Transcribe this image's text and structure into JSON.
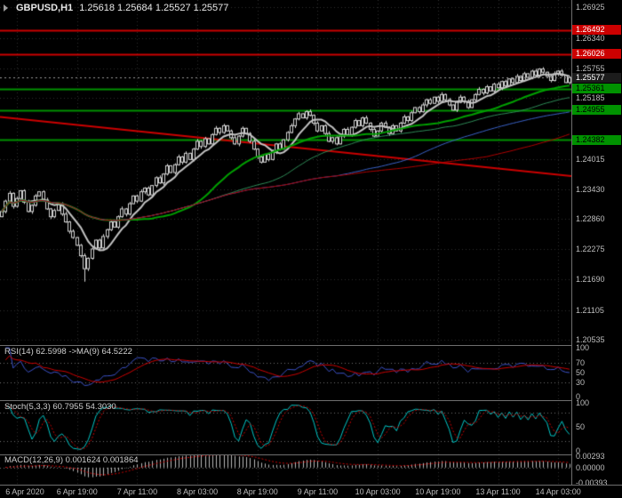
{
  "title": {
    "symbol": "GBPUSD,H1",
    "ohlc": "1.25618 1.25684 1.25527 1.25577"
  },
  "colors": {
    "background": "#000000",
    "grid": "#2f2f2f",
    "frame": "#6e6e6e",
    "candle_outline": "#d4d4d4",
    "resistance_red": "#cc0000",
    "support_green": "#009200",
    "current_price_bg": "#1c1c1c"
  },
  "chart_data": {
    "type": "candlestick",
    "symbol": "GBPUSD",
    "timeframe": "H1",
    "ohlc_display": {
      "open": "1.25618",
      "high": "1.25684",
      "low": "1.25527",
      "close": "1.25577"
    },
    "price_range": {
      "top": 1.27,
      "bottom": 1.205
    },
    "y_ticks": [
      1.26925,
      1.2634,
      1.25755,
      1.25185,
      1.24015,
      1.2343,
      1.2286,
      1.22275,
      1.2169,
      1.21105,
      1.20535
    ],
    "x_labels": [
      {
        "text": "6 Apr 2020",
        "index": 4
      },
      {
        "text": "6 Apr 19:00",
        "index": 20
      },
      {
        "text": "7 Apr 11:00",
        "index": 36
      },
      {
        "text": "8 Apr 03:00",
        "index": 52
      },
      {
        "text": "8 Apr 19:00",
        "index": 68
      },
      {
        "text": "9 Apr 11:00",
        "index": 84
      },
      {
        "text": "10 Apr 03:00",
        "index": 100
      },
      {
        "text": "10 Apr 19:00",
        "index": 116
      },
      {
        "text": "13 Apr 11:00",
        "index": 132
      },
      {
        "text": "14 Apr 03:00",
        "index": 148
      }
    ],
    "closes": [
      1.23,
      1.232,
      1.2335,
      1.231,
      1.2325,
      1.234,
      1.2318,
      1.23,
      1.2312,
      1.233,
      1.2338,
      1.2322,
      1.2305,
      1.229,
      1.2302,
      1.2315,
      1.2295,
      1.228,
      1.2262,
      1.225,
      1.2235,
      1.2215,
      1.219,
      1.221,
      1.2228,
      1.2245,
      1.223,
      1.2252,
      1.2265,
      1.228,
      1.227,
      1.229,
      1.2305,
      1.2295,
      1.2315,
      1.233,
      1.232,
      1.2338,
      1.2345,
      1.2332,
      1.235,
      1.2365,
      1.2355,
      1.2372,
      1.2388,
      1.2375,
      1.239,
      1.2405,
      1.2395,
      1.2412,
      1.24,
      1.242,
      1.2435,
      1.2425,
      1.244,
      1.243,
      1.2448,
      1.246,
      1.2452,
      1.2465,
      1.2455,
      1.2442,
      1.243,
      1.2445,
      1.246,
      1.245,
      1.2435,
      1.242,
      1.2405,
      1.2395,
      1.241,
      1.24,
      1.2415,
      1.243,
      1.242,
      1.2438,
      1.2452,
      1.2465,
      1.2478,
      1.2488,
      1.248,
      1.2492,
      1.2485,
      1.247,
      1.2455,
      1.2465,
      1.245,
      1.2435,
      1.2442,
      1.243,
      1.2445,
      1.2458,
      1.2448,
      1.2462,
      1.2475,
      1.2465,
      1.248,
      1.247,
      1.2458,
      1.2445,
      1.2455,
      1.247,
      1.2462,
      1.245,
      1.2465,
      1.2455,
      1.247,
      1.2482,
      1.2475,
      1.249,
      1.25,
      1.2492,
      1.2505,
      1.2515,
      1.2508,
      1.252,
      1.2512,
      1.2525,
      1.2515,
      1.2505,
      1.2495,
      1.251,
      1.252,
      1.2512,
      1.25,
      1.2515,
      1.2525,
      1.2535,
      1.2528,
      1.254,
      1.2532,
      1.2545,
      1.2538,
      1.255,
      1.2542,
      1.2555,
      1.2548,
      1.256,
      1.2552,
      1.2565,
      1.2558,
      1.257,
      1.2562,
      1.2574,
      1.2568,
      1.256,
      1.2552,
      1.2565,
      1.257,
      1.2562,
      1.2548,
      1.25577
    ],
    "spike": {
      "index": 22,
      "low": 1.2165
    },
    "h_lines": [
      {
        "value": 1.26492,
        "color": "#cc0000",
        "width": 2
      },
      {
        "value": 1.26026,
        "color": "#cc0000",
        "width": 2
      },
      {
        "value": 1.25361,
        "color": "#009200",
        "width": 2
      },
      {
        "value": 1.24955,
        "color": "#009200",
        "width": 2
      },
      {
        "value": 1.24382,
        "color": "#009200",
        "width": 2
      }
    ],
    "trend_line": {
      "x1": 0,
      "price1": 1.2482,
      "x2": 1,
      "price2": 1.2368,
      "color": "#cc0000",
      "width": 2
    },
    "moving_averages": [
      {
        "period": 8,
        "color": "#c4c4c4",
        "width": 2
      },
      {
        "period": 34,
        "color": "#00a000",
        "width": 2
      },
      {
        "period": 55,
        "color": "#2e8b57",
        "width": 1
      },
      {
        "period": 90,
        "color": "#3a62c8",
        "width": 1
      },
      {
        "period": 130,
        "color": "#b00000",
        "width": 1
      }
    ],
    "current_price": {
      "value": 1.25577,
      "label": "1.25577",
      "bg": "#1c1c1c",
      "fg": "#ffffff"
    },
    "price_label_boxes": [
      {
        "value": 1.26492,
        "label": "1.26492",
        "bg": "#cc0000",
        "fg": "#ffffff"
      },
      {
        "value": 1.26026,
        "label": "1.26026",
        "bg": "#cc0000",
        "fg": "#ffffff"
      },
      {
        "value": 1.25361,
        "label": "1.25361",
        "bg": "#009200",
        "fg": "#000000"
      },
      {
        "value": 1.24955,
        "label": "1.24955",
        "bg": "#009200",
        "fg": "#000000"
      },
      {
        "value": 1.24382,
        "label": "1.24382",
        "bg": "#009200",
        "fg": "#000000"
      }
    ],
    "indicators": {
      "rsi": {
        "label": "RSI(14) 62.5998  ->MA(9) 64.5222",
        "period": 14,
        "ma_period": 9,
        "value": 62.5998,
        "ma_value": 64.5222,
        "level_labels": [
          "100",
          "70",
          "50",
          "30",
          "0"
        ],
        "level_values": [
          100,
          70,
          50,
          30,
          0
        ],
        "dashed_levels": [
          70,
          30
        ],
        "line_color": "#3c52c8",
        "ma_color": "#cc0000"
      },
      "stoch": {
        "label": "Stoch(5,3,3) 60.7955 54.3030",
        "k_period": 5,
        "d_period": 3,
        "slowing": 3,
        "value": 60.7955,
        "signal_value": 54.303,
        "level_labels": [
          "100",
          "50",
          "0"
        ],
        "level_values": [
          100,
          50,
          0
        ],
        "dashed_levels": [
          80,
          20
        ],
        "k_color": "#00c8c8",
        "d_color": "#cc0000"
      },
      "macd": {
        "label": "MACD(12,26,9) 0.001624 0.001864",
        "fast": 12,
        "slow": 26,
        "signal": 9,
        "value": 0.001624,
        "signal_value": 0.001864,
        "level_labels": [
          "0.00293",
          "0.00000",
          "-0.00393"
        ],
        "level_values": [
          0.00293,
          0,
          -0.00393
        ],
        "scale_top": 0.00293,
        "scale_bottom": -0.00393,
        "hist_color": "#b8b8b8",
        "signal_color": "#cc0000"
      }
    }
  }
}
